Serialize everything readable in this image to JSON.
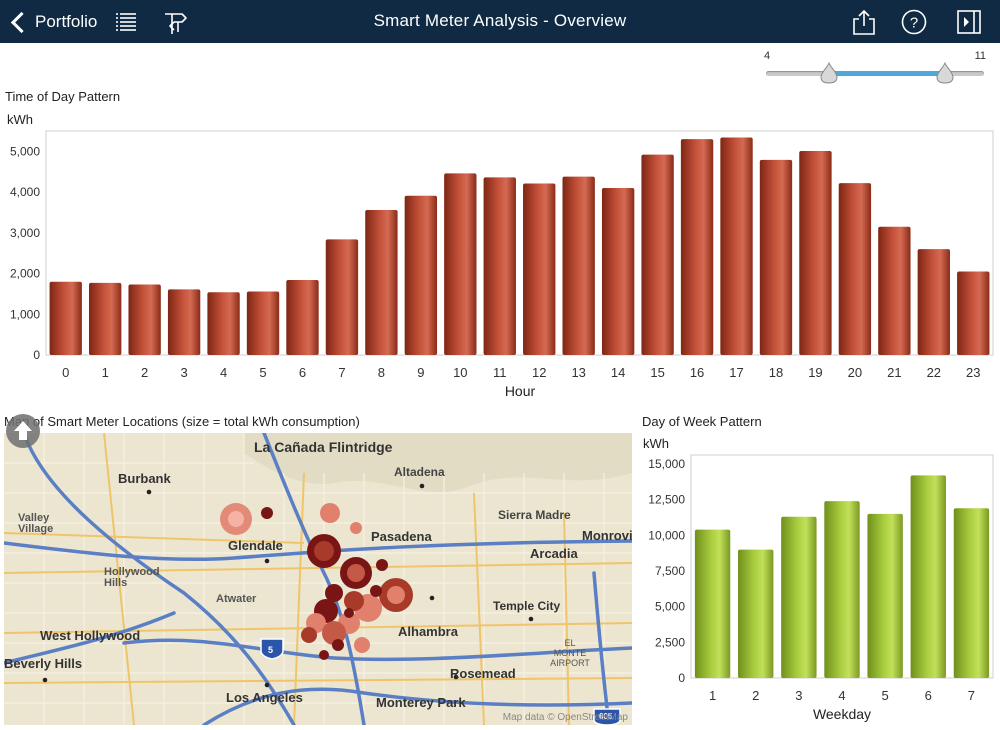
{
  "topbar": {
    "back_label": "Portfolio",
    "title": "Smart Meter Analysis - Overview",
    "icons": [
      "list-icon",
      "flow-icon",
      "share-icon",
      "help-icon",
      "panel-icon"
    ]
  },
  "slider": {
    "min_label": "4",
    "max_label": "11",
    "low_fraction": 0.29,
    "high_fraction": 0.81
  },
  "hour_panel": {
    "title": "Time of Day Pattern",
    "unit": "kWh"
  },
  "map_panel": {
    "title": "Map of Smart Meter Locations (size = total kWh consumption)",
    "attribution": "Map data © OpenStreetMap",
    "places": [
      "La Cañada Flintridge",
      "Altadena",
      "Burbank",
      "Sierra Madre",
      "Valley Village",
      "Pasadena",
      "Glendale",
      "Arcadia",
      "Monrovia",
      "Hollywood Hills",
      "Atwater",
      "Temple City",
      "Alhambra",
      "EL MONTE AIRPORT",
      "West Hollywood",
      "Rosemead",
      "Beverly Hills",
      "Los Angeles",
      "Monterey Park"
    ],
    "shields": [
      "5",
      "605"
    ]
  },
  "day_panel": {
    "title": "Day of Week Pattern",
    "unit": "kWh"
  },
  "colors": {
    "header": "#102a43",
    "hour_bar": "#b8452b",
    "day_bar": "#9fc23a",
    "slider_range": "#4fa8d8"
  },
  "chart_data": [
    {
      "type": "bar",
      "title": "Time of Day Pattern",
      "xlabel": "Hour",
      "ylabel": "kWh",
      "categories": [
        "0",
        "1",
        "2",
        "3",
        "4",
        "5",
        "6",
        "7",
        "8",
        "9",
        "10",
        "11",
        "12",
        "13",
        "14",
        "15",
        "16",
        "17",
        "18",
        "19",
        "20",
        "21",
        "22",
        "23"
      ],
      "values": [
        1800,
        1770,
        1730,
        1610,
        1540,
        1560,
        1840,
        2840,
        3560,
        3910,
        4460,
        4360,
        4210,
        4380,
        4100,
        4920,
        5300,
        5340,
        4790,
        5010,
        4220,
        3150,
        2600,
        2050
      ],
      "yticks": [
        0,
        1000,
        2000,
        3000,
        4000,
        5000
      ],
      "ylim": [
        0,
        5500
      ],
      "grid": false
    },
    {
      "type": "bar",
      "title": "Day of Week Pattern",
      "xlabel": "Weekday",
      "ylabel": "kWh",
      "categories": [
        "1",
        "2",
        "3",
        "4",
        "5",
        "6",
        "7"
      ],
      "values": [
        10400,
        9000,
        11300,
        12400,
        11500,
        14200,
        11900
      ],
      "yticks": [
        0,
        2500,
        5000,
        7500,
        10000,
        12500,
        15000
      ],
      "ylim": [
        0,
        15000
      ],
      "grid": false
    }
  ]
}
